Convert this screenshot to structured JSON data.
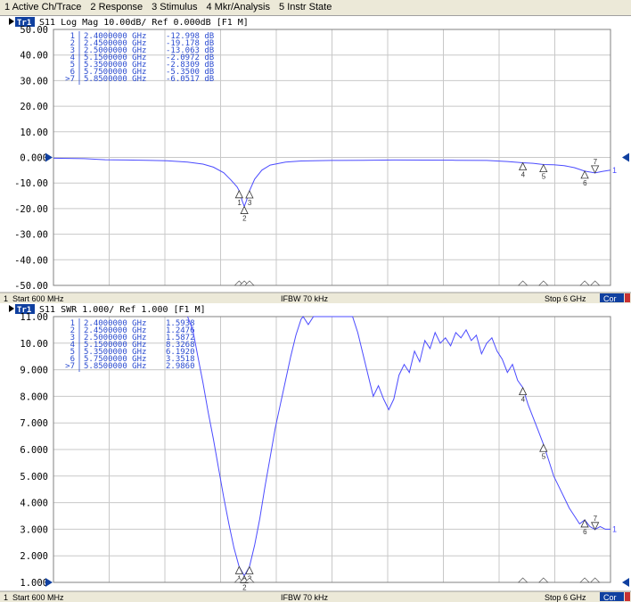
{
  "menu": [
    {
      "label": "1 Active Ch/Trace"
    },
    {
      "label": "2 Response"
    },
    {
      "label": "3 Stimulus"
    },
    {
      "label": "4 Mkr/Analysis"
    },
    {
      "label": "5 Instr State"
    }
  ],
  "colors": {
    "trace": "#4b4bff",
    "marker_text": "#2a4bd0",
    "grid": "#c8c8c8",
    "status_blue": "#1040a0"
  },
  "chart_data": [
    {
      "type": "line",
      "header": {
        "tag": "Tr1",
        "text": "S11  Log Mag 10.00dB/ Ref 0.000dB [F1 M]"
      },
      "y_ticks": [
        "50.00",
        "40.00",
        "30.00",
        "20.00",
        "10.00",
        "0.000",
        "-10.00",
        "-20.00",
        "-30.00",
        "-40.00",
        "-50.00"
      ],
      "ylim": [
        -50,
        50
      ],
      "xlim": [
        0.6,
        6.0
      ],
      "ref_value": 0,
      "markers": [
        {
          "num": "1",
          "freq": "2.4000000 GHz",
          "val": "-12.998 dB",
          "x": 2.4,
          "y": -12.998
        },
        {
          "num": "2",
          "freq": "2.4500000 GHz",
          "val": "-19.178 dB",
          "x": 2.45,
          "y": -19.178
        },
        {
          "num": "3",
          "freq": "2.5000000 GHz",
          "val": "-13.063 dB",
          "x": 2.5,
          "y": -13.063
        },
        {
          "num": "4",
          "freq": "5.1500000 GHz",
          "val": "-2.0972 dB",
          "x": 5.15,
          "y": -2.0972
        },
        {
          "num": "5",
          "freq": "5.3500000 GHz",
          "val": "-2.8309 dB",
          "x": 5.35,
          "y": -2.8309
        },
        {
          "num": "6",
          "freq": "5.7500000 GHz",
          "val": "-5.3500 dB",
          "x": 5.75,
          "y": -5.35
        },
        {
          "num": ">7",
          "freq": "5.8500000 GHz",
          "val": "-6.0517 dB",
          "x": 5.85,
          "y": -6.0517
        }
      ],
      "series": [
        {
          "values": [
            [
              0.6,
              -0.3
            ],
            [
              0.9,
              -0.5
            ],
            [
              1.1,
              -0.9
            ],
            [
              1.3,
              -1.0
            ],
            [
              1.5,
              -1.1
            ],
            [
              1.7,
              -1.3
            ],
            [
              1.9,
              -1.8
            ],
            [
              2.05,
              -2.6
            ],
            [
              2.15,
              -3.8
            ],
            [
              2.25,
              -6.0
            ],
            [
              2.32,
              -8.8
            ],
            [
              2.38,
              -11.5
            ],
            [
              2.4,
              -13.0
            ],
            [
              2.43,
              -17.0
            ],
            [
              2.45,
              -19.2
            ],
            [
              2.47,
              -17.0
            ],
            [
              2.5,
              -13.1
            ],
            [
              2.55,
              -8.5
            ],
            [
              2.62,
              -5.0
            ],
            [
              2.7,
              -3.0
            ],
            [
              2.85,
              -1.8
            ],
            [
              3.0,
              -1.4
            ],
            [
              3.3,
              -1.2
            ],
            [
              3.6,
              -1.1
            ],
            [
              3.9,
              -1.0
            ],
            [
              4.2,
              -1.05
            ],
            [
              4.5,
              -1.1
            ],
            [
              4.8,
              -1.2
            ],
            [
              5.0,
              -1.6
            ],
            [
              5.15,
              -2.1
            ],
            [
              5.25,
              -2.3
            ],
            [
              5.35,
              -2.8
            ],
            [
              5.45,
              -2.9
            ],
            [
              5.55,
              -3.2
            ],
            [
              5.65,
              -4.0
            ],
            [
              5.75,
              -5.35
            ],
            [
              5.85,
              -6.05
            ],
            [
              5.92,
              -5.5
            ],
            [
              6.0,
              -5.0
            ]
          ]
        }
      ],
      "status": {
        "channel": "1",
        "start": "Start 600 MHz",
        "ifbw": "IFBW 70 kHz",
        "stop": "Stop 6 GHz",
        "cor": "Cor"
      }
    },
    {
      "type": "line",
      "header": {
        "tag": "Tr1",
        "text": "S11  SWR 1.000/ Ref 1.000 [F1 M]"
      },
      "y_ticks": [
        "11.00",
        "10.00",
        "9.000",
        "8.000",
        "7.000",
        "6.000",
        "5.000",
        "4.000",
        "3.000",
        "2.000",
        "1.000"
      ],
      "ylim": [
        1,
        11
      ],
      "xlim": [
        0.6,
        6.0
      ],
      "ref_value": 1,
      "markers": [
        {
          "num": "1",
          "freq": "2.4000000 GHz",
          "val": "1.5938",
          "x": 2.4,
          "y": 1.5938
        },
        {
          "num": "2",
          "freq": "2.4500000 GHz",
          "val": "1.2476",
          "x": 2.45,
          "y": 1.2476
        },
        {
          "num": "3",
          "freq": "2.5000000 GHz",
          "val": "1.5872",
          "x": 2.5,
          "y": 1.5872
        },
        {
          "num": "4",
          "freq": "5.1500000 GHz",
          "val": "8.3268",
          "x": 5.15,
          "y": 8.3268
        },
        {
          "num": "5",
          "freq": "5.3500000 GHz",
          "val": "6.1920",
          "x": 5.35,
          "y": 6.192
        },
        {
          "num": "6",
          "freq": "5.7500000 GHz",
          "val": "3.3518",
          "x": 5.75,
          "y": 3.3518
        },
        {
          "num": ">7",
          "freq": "5.8500000 GHz",
          "val": "2.9860",
          "x": 5.85,
          "y": 2.986
        }
      ],
      "series": [
        {
          "values": [
            [
              1.9,
              11.0
            ],
            [
              1.95,
              10.5
            ],
            [
              2.0,
              9.5
            ],
            [
              2.05,
              8.5
            ],
            [
              2.1,
              7.4
            ],
            [
              2.15,
              6.4
            ],
            [
              2.2,
              5.3
            ],
            [
              2.25,
              4.2
            ],
            [
              2.3,
              3.2
            ],
            [
              2.35,
              2.3
            ],
            [
              2.4,
              1.59
            ],
            [
              2.45,
              1.25
            ],
            [
              2.5,
              1.59
            ],
            [
              2.55,
              2.4
            ],
            [
              2.6,
              3.4
            ],
            [
              2.65,
              4.6
            ],
            [
              2.7,
              5.7
            ],
            [
              2.75,
              6.8
            ],
            [
              2.8,
              7.7
            ],
            [
              2.85,
              8.6
            ],
            [
              2.9,
              9.5
            ],
            [
              2.95,
              10.3
            ],
            [
              3.0,
              10.9
            ],
            [
              3.02,
              11.0
            ],
            [
              3.07,
              10.7
            ],
            [
              3.12,
              11.0
            ],
            [
              3.5,
              11.0
            ],
            [
              3.55,
              10.4
            ],
            [
              3.6,
              9.6
            ],
            [
              3.65,
              8.8
            ],
            [
              3.7,
              8.0
            ],
            [
              3.75,
              8.4
            ],
            [
              3.8,
              7.9
            ],
            [
              3.85,
              7.5
            ],
            [
              3.9,
              7.9
            ],
            [
              3.95,
              8.8
            ],
            [
              4.0,
              9.2
            ],
            [
              4.05,
              8.9
            ],
            [
              4.1,
              9.7
            ],
            [
              4.15,
              9.3
            ],
            [
              4.2,
              10.1
            ],
            [
              4.25,
              9.8
            ],
            [
              4.3,
              10.4
            ],
            [
              4.35,
              10.0
            ],
            [
              4.4,
              10.2
            ],
            [
              4.45,
              9.9
            ],
            [
              4.5,
              10.4
            ],
            [
              4.55,
              10.2
            ],
            [
              4.6,
              10.5
            ],
            [
              4.65,
              10.1
            ],
            [
              4.7,
              10.3
            ],
            [
              4.75,
              9.6
            ],
            [
              4.8,
              10.0
            ],
            [
              4.85,
              10.2
            ],
            [
              4.9,
              9.7
            ],
            [
              4.95,
              9.4
            ],
            [
              5.0,
              8.9
            ],
            [
              5.05,
              9.2
            ],
            [
              5.1,
              8.6
            ],
            [
              5.15,
              8.33
            ],
            [
              5.2,
              7.7
            ],
            [
              5.25,
              7.2
            ],
            [
              5.3,
              6.7
            ],
            [
              5.35,
              6.19
            ],
            [
              5.4,
              5.6
            ],
            [
              5.45,
              5.0
            ],
            [
              5.5,
              4.6
            ],
            [
              5.55,
              4.2
            ],
            [
              5.6,
              3.8
            ],
            [
              5.65,
              3.5
            ],
            [
              5.7,
              3.2
            ],
            [
              5.75,
              3.35
            ],
            [
              5.8,
              3.1
            ],
            [
              5.85,
              2.99
            ],
            [
              5.9,
              3.1
            ],
            [
              5.95,
              3.0
            ],
            [
              6.0,
              3.0
            ]
          ]
        }
      ],
      "status": {
        "channel": "1",
        "start": "Start 600 MHz",
        "ifbw": "IFBW 70 kHz",
        "stop": "Stop 6 GHz",
        "cor": "Cor"
      }
    }
  ]
}
